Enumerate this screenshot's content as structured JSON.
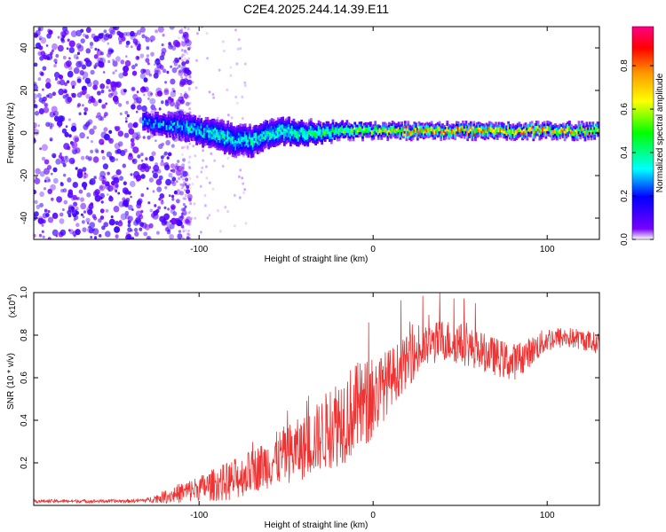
{
  "title": "C2E4.2025.244.14.39.E11",
  "colors": {
    "snr_line": "#ee3333",
    "cbar_stops": [
      "#ffffff",
      "#7700ff",
      "#0000ff",
      "#00ffff",
      "#00ff00",
      "#ffff00",
      "#ff9900",
      "#ff0000",
      "#ff0088"
    ]
  },
  "chart_data": [
    {
      "type": "heatmap",
      "name": "spectrogram",
      "title": "C2E4.2025.244.14.39.E11",
      "xlabel": "Height of straight line (km)",
      "ylabel": "Frequency (Hz)",
      "xlim": [
        -195,
        130
      ],
      "ylim": [
        -50,
        50
      ],
      "xticks": [
        -100,
        0,
        100
      ],
      "xtick_labels": [
        "-100",
        "0",
        "100"
      ],
      "yticks": [
        -40,
        -20,
        0,
        20,
        40
      ],
      "ytick_labels": [
        "-40",
        "-20",
        "0",
        "20",
        "40"
      ],
      "colorbar": {
        "label": "Normalized spectral amplitude",
        "range": [
          0,
          0.98
        ],
        "ticks": [
          0,
          0.2,
          0.4,
          0.6,
          0.8
        ],
        "tick_labels": [
          "0.0",
          "0.2",
          "0.4",
          "0.6",
          "0.8"
        ]
      },
      "band_center_hz": [
        [
          -130,
          5
        ],
        [
          -120,
          4
        ],
        [
          -110,
          3
        ],
        [
          -100,
          1
        ],
        [
          -90,
          -1
        ],
        [
          -80,
          -3
        ],
        [
          -70,
          -4
        ],
        [
          -60,
          0
        ],
        [
          -50,
          1
        ],
        [
          -40,
          0
        ],
        [
          -30,
          0
        ],
        [
          -20,
          1
        ],
        [
          -10,
          1
        ],
        [
          0,
          1
        ],
        [
          20,
          1
        ],
        [
          40,
          1
        ],
        [
          60,
          1
        ],
        [
          80,
          1
        ],
        [
          100,
          1
        ],
        [
          130,
          1
        ]
      ],
      "band_peak_amplitude": [
        [
          -130,
          0.3
        ],
        [
          -110,
          0.35
        ],
        [
          -90,
          0.4
        ],
        [
          -70,
          0.4
        ],
        [
          -50,
          0.45
        ],
        [
          -30,
          0.5
        ],
        [
          -10,
          0.6
        ],
        [
          0,
          0.7
        ],
        [
          20,
          0.85
        ],
        [
          50,
          0.9
        ],
        [
          80,
          0.85
        ],
        [
          110,
          0.85
        ],
        [
          130,
          0.8
        ]
      ],
      "band_halfwidth_hz": [
        [
          -130,
          5
        ],
        [
          -80,
          8
        ],
        [
          -40,
          6
        ],
        [
          -20,
          4
        ],
        [
          0,
          3
        ],
        [
          130,
          3
        ]
      ]
    },
    {
      "type": "line",
      "name": "snr",
      "xlabel": "Height of straight line (km)",
      "ylabel": "SNR (10 * v/v)",
      "scale_label": "(x10",
      "scale_exponent": "4",
      "scale_close": ")",
      "xlim": [
        -195,
        130
      ],
      "ylim": [
        0,
        1.0
      ],
      "xticks": [
        -100,
        0,
        100
      ],
      "xtick_labels": [
        "-100",
        "0",
        "100"
      ],
      "yticks": [
        0.2,
        0.4,
        0.6,
        0.8,
        1.0
      ],
      "ytick_labels": [
        "0.2",
        "0.4",
        "0.6",
        "0.8",
        "1.0"
      ],
      "x": [
        -195,
        -160,
        -140,
        -130,
        -120,
        -110,
        -100,
        -90,
        -80,
        -70,
        -60,
        -50,
        -40,
        -30,
        -20,
        -10,
        0,
        10,
        20,
        30,
        40,
        50,
        60,
        70,
        80,
        90,
        100,
        110,
        120,
        130
      ],
      "envelope": [
        0.02,
        0.02,
        0.02,
        0.025,
        0.04,
        0.06,
        0.08,
        0.1,
        0.12,
        0.16,
        0.2,
        0.24,
        0.27,
        0.33,
        0.4,
        0.45,
        0.5,
        0.6,
        0.68,
        0.74,
        0.78,
        0.76,
        0.73,
        0.7,
        0.67,
        0.72,
        0.78,
        0.79,
        0.78,
        0.76
      ],
      "noise": [
        0.008,
        0.008,
        0.008,
        0.01,
        0.03,
        0.05,
        0.06,
        0.08,
        0.1,
        0.1,
        0.12,
        0.14,
        0.15,
        0.17,
        0.22,
        0.22,
        0.2,
        0.14,
        0.12,
        0.1,
        0.1,
        0.1,
        0.09,
        0.09,
        0.09,
        0.07,
        0.06,
        0.05,
        0.05,
        0.05
      ]
    }
  ]
}
